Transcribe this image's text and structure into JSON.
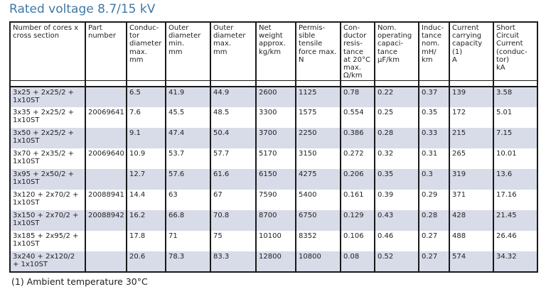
{
  "page": {
    "title": "Rated voltage 8.7/15 kV",
    "footnote": "(1) Ambient temperature 30°C"
  },
  "colors": {
    "title_text": "#3e78a6",
    "row_shade": "#d8dbe8",
    "table_border": "#1a1a1a",
    "body_text": "#232323"
  },
  "table": {
    "headers": [
      "Number of cores x\ncross section",
      "Part\nnumber",
      "Conduc-\ntor\ndiameter\nmax.\nmm",
      "Outer\ndiameter\nmin.\nmm",
      "Outer\ndiameter\nmax.\nmm",
      "Net\nweight\napprox.\nkg/km",
      "Permis-\nsible\ntensile\nforce max.\nN",
      "Con-\nductor\nresis-\ntance\nat 20°C\nmax.\nΩ/km",
      "Nom.\noperating\ncapaci-\ntance\nµF/km",
      "Induc-\ntance\nnom.\nmH/\nkm",
      "Current\ncarrying\ncapacity\n(1)\nA",
      "Short\nCircuit\nCurrent\n(conduc-\ntor)\nkA"
    ],
    "rows": [
      [
        "3x25 + 2x25/2 +\n1x10ST",
        "",
        "6.5",
        "41.9",
        "44.9",
        "2600",
        "1125",
        "0.78",
        "0.22",
        "0.37",
        "139",
        "3.58"
      ],
      [
        "3x35 + 2x25/2 +\n1x10ST",
        "20069641",
        "7.6",
        "45.5",
        "48.5",
        "3300",
        "1575",
        "0.554",
        "0.25",
        "0.35",
        "172",
        "5.01"
      ],
      [
        "3x50 + 2x25/2 +\n1x10ST",
        "",
        "9.1",
        "47.4",
        "50.4",
        "3700",
        "2250",
        "0.386",
        "0.28",
        "0.33",
        "215",
        "7.15"
      ],
      [
        "3x70 + 2x35/2 +\n1x10ST",
        "20069640",
        "10.9",
        "53.7",
        "57.7",
        "5170",
        "3150",
        "0.272",
        "0.32",
        "0.31",
        "265",
        "10.01"
      ],
      [
        "3x95 + 2x50/2 +\n1x10ST",
        "",
        "12.7",
        "57.6",
        "61.6",
        "6150",
        "4275",
        "0.206",
        "0.35",
        "0.3",
        "319",
        "13.6"
      ],
      [
        "3x120 + 2x70/2 +\n1x10ST",
        "20088941",
        "14.4",
        "63",
        "67",
        "7590",
        "5400",
        "0.161",
        "0.39",
        "0.29",
        "371",
        "17.16"
      ],
      [
        "3x150 + 2x70/2 +\n1x10ST",
        "20088942",
        "16.2",
        "66.8",
        "70.8",
        "8700",
        "6750",
        "0.129",
        "0.43",
        "0.28",
        "428",
        "21.45"
      ],
      [
        "3x185 + 2x95/2 +\n1x10ST",
        "",
        "17.8",
        "71",
        "75",
        "10100",
        "8352",
        "0.106",
        "0.46",
        "0.27",
        "488",
        "26.46"
      ],
      [
        "3x240 + 2x120/2\n+ 1x10ST",
        "",
        "20.6",
        "78.3",
        "83.3",
        "12800",
        "10800",
        "0.08",
        "0.52",
        "0.27",
        "574",
        "34.32"
      ]
    ]
  }
}
